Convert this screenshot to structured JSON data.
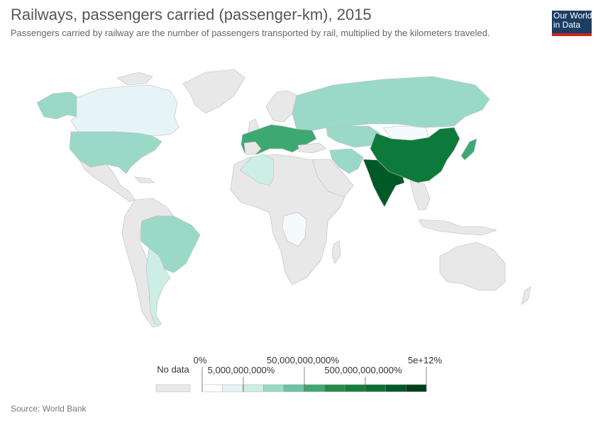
{
  "header": {
    "title": "Railways, passengers carried (passenger-km), 2015",
    "subtitle": "Passengers carried by railway are the number of passengers transported by rail, multiplied by the kilometers traveled."
  },
  "logo": {
    "line1": "Our World",
    "line2": "in Data",
    "bg_color": "#1d3d63",
    "bar_color": "#ce261e"
  },
  "map": {
    "no_data_color": "#e8e8e8",
    "border_color": "#bbbbbb",
    "regions": [
      {
        "name": "Canada",
        "color": "#e6f4f8"
      },
      {
        "name": "United States",
        "color": "#9ad9c7"
      },
      {
        "name": "Alaska",
        "color": "#9ad9c7"
      },
      {
        "name": "Brazil",
        "color": "#9ad9c7"
      },
      {
        "name": "Argentina",
        "color": "#cdeee5"
      },
      {
        "name": "Western Europe",
        "color": "#3ea873"
      },
      {
        "name": "Russia",
        "color": "#9ad9c7"
      },
      {
        "name": "China",
        "color": "#0d7a3c"
      },
      {
        "name": "India",
        "color": "#005a28"
      },
      {
        "name": "Japan",
        "color": "#3ea873"
      },
      {
        "name": "Algeria",
        "color": "#cdeee5"
      },
      {
        "name": "Iran",
        "color": "#9ad9c7"
      },
      {
        "name": "Kazakhstan",
        "color": "#9ad9c7"
      },
      {
        "name": "Mongolia",
        "color": "#f5fbfc"
      },
      {
        "name": "Congo",
        "color": "#f5fbfc"
      }
    ]
  },
  "legend": {
    "no_data_label": "No data",
    "bins": [
      "#ffffff",
      "#e6f4f8",
      "#cdeee5",
      "#9ad9c7",
      "#6cc2a3",
      "#3ea873",
      "#238b4a",
      "#15803d",
      "#0d6e34",
      "#00582a",
      "#003f1c"
    ],
    "ticks": [
      {
        "label": "0%"
      },
      {
        "label": "5,000,000,000%"
      },
      {
        "label": "50,000,000,000%"
      },
      {
        "label": "500,000,000,000%"
      },
      {
        "label": "5e+12%"
      }
    ]
  },
  "footer": {
    "source": "Source: World Bank"
  }
}
